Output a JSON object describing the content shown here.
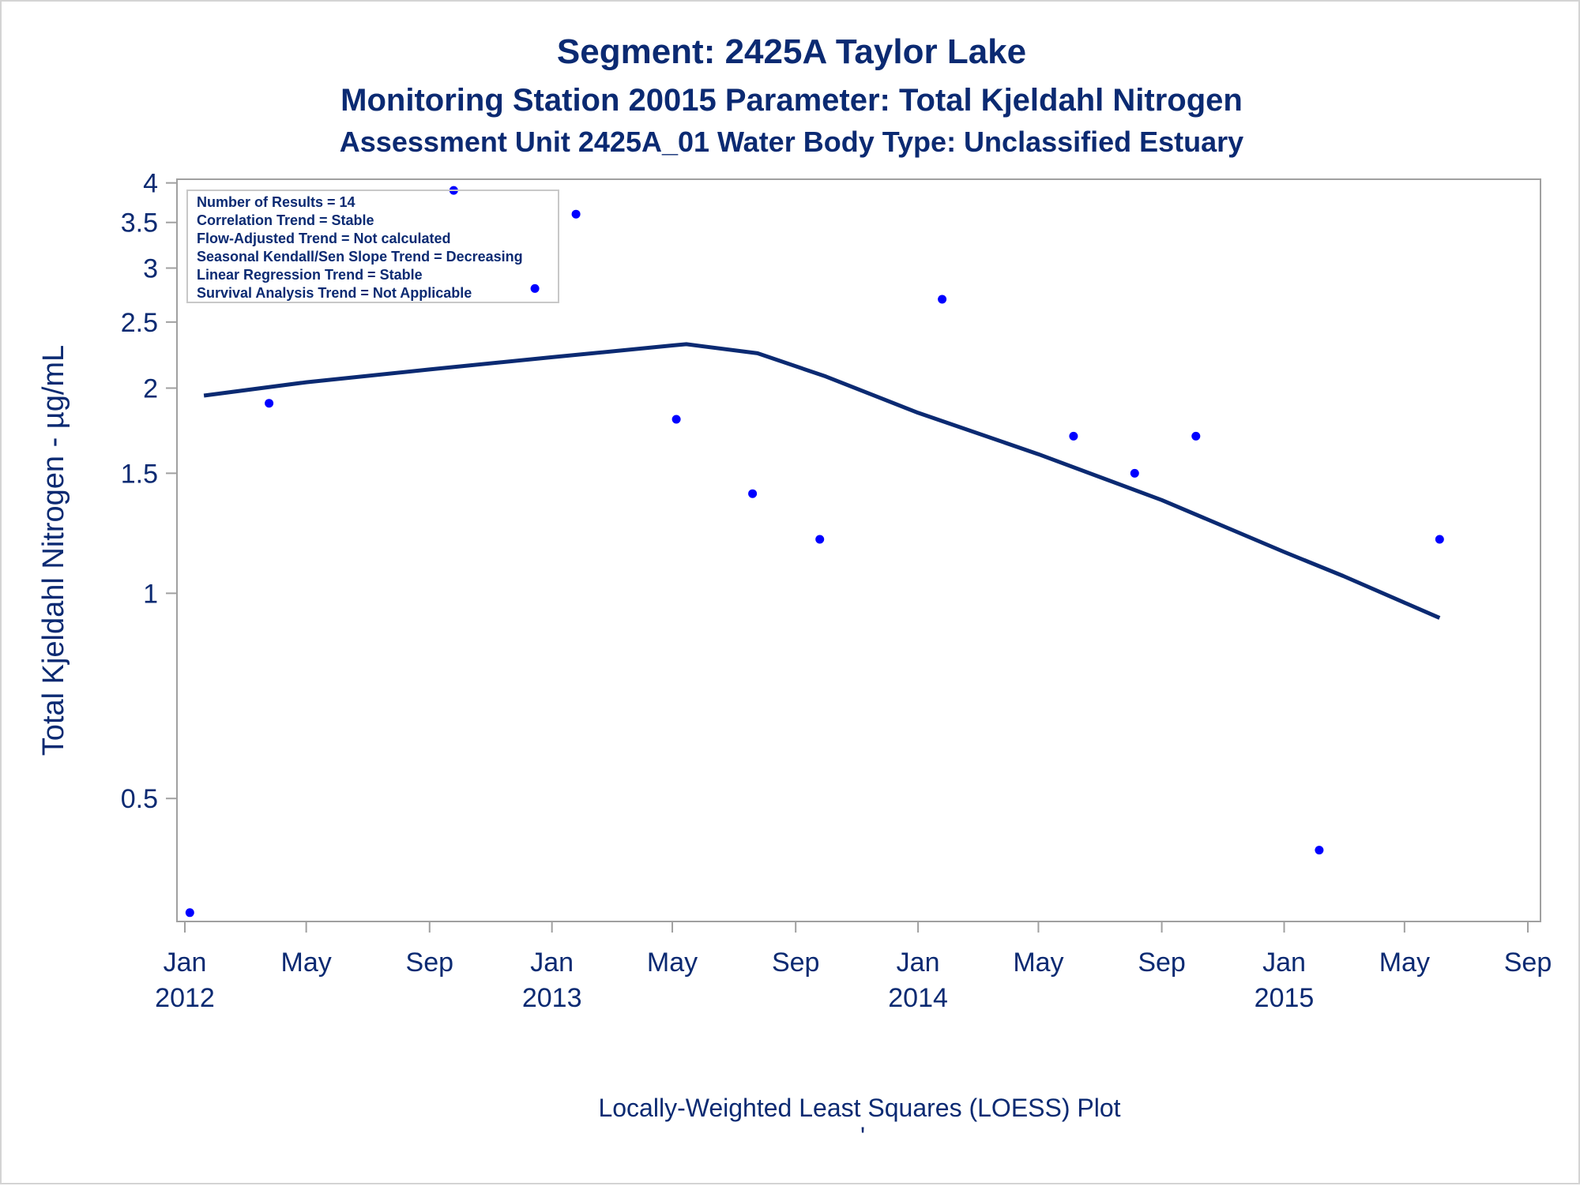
{
  "titles": {
    "line1": "Segment: 2425A  Taylor Lake",
    "line2": "Monitoring Station 20015 Parameter: Total Kjeldahl Nitrogen",
    "line3": "Assessment Unit 2425A_01   Water Body Type: Unclassified Estuary"
  },
  "legend": [
    "Number of Results = 14",
    "Correlation Trend = Stable",
    "Flow-Adjusted Trend = Not calculated",
    "Seasonal Kendall/Sen Slope Trend = Decreasing",
    "Linear Regression Trend = Stable",
    "Survival Analysis Trend = Not Applicable"
  ],
  "footnote": "Locally-Weighted Least Squares (LOESS) Plot",
  "footnote_mark": "'",
  "colors": {
    "points": "#0000ff",
    "line": "#0b2a72",
    "text": "#0b2a72",
    "frame": "#a0a0a0"
  },
  "chart_data": {
    "type": "scatter",
    "ylabel": "Total Kjeldahl Nitrogen -  µg/mL",
    "xlabel": "",
    "y_scale": "log",
    "ylim": [
      0.33,
      4.05
    ],
    "xlim": [
      "2012-01-01",
      "2015-09-01"
    ],
    "y_ticks": [
      {
        "value": 4,
        "label": "4"
      },
      {
        "value": 3.5,
        "label": "3.5"
      },
      {
        "value": 3,
        "label": "3"
      },
      {
        "value": 2.5,
        "label": "2.5"
      },
      {
        "value": 2,
        "label": "2"
      },
      {
        "value": 1.5,
        "label": "1.5"
      },
      {
        "value": 1,
        "label": "1"
      },
      {
        "value": 0.5,
        "label": "0.5"
      }
    ],
    "x_ticks": [
      {
        "date": "2012-01-01",
        "label": "Jan",
        "year": "2012"
      },
      {
        "date": "2012-05-01",
        "label": "May",
        "year": ""
      },
      {
        "date": "2012-09-01",
        "label": "Sep",
        "year": ""
      },
      {
        "date": "2013-01-01",
        "label": "Jan",
        "year": "2013"
      },
      {
        "date": "2013-05-01",
        "label": "May",
        "year": ""
      },
      {
        "date": "2013-09-01",
        "label": "Sep",
        "year": ""
      },
      {
        "date": "2014-01-01",
        "label": "Jan",
        "year": "2014"
      },
      {
        "date": "2014-05-01",
        "label": "May",
        "year": ""
      },
      {
        "date": "2014-09-01",
        "label": "Sep",
        "year": ""
      },
      {
        "date": "2015-01-01",
        "label": "Jan",
        "year": "2015"
      },
      {
        "date": "2015-05-01",
        "label": "May",
        "year": ""
      },
      {
        "date": "2015-09-01",
        "label": "Sep",
        "year": ""
      }
    ],
    "series": [
      {
        "type": "scatter",
        "points": [
          {
            "x": "2012-01-06",
            "y": 0.34
          },
          {
            "x": "2012-03-25",
            "y": 1.9
          },
          {
            "x": "2012-09-25",
            "y": 3.9
          },
          {
            "x": "2012-12-15",
            "y": 2.8
          },
          {
            "x": "2013-01-25",
            "y": 3.6
          },
          {
            "x": "2013-05-05",
            "y": 1.8
          },
          {
            "x": "2013-07-20",
            "y": 1.4
          },
          {
            "x": "2013-09-25",
            "y": 1.2
          },
          {
            "x": "2014-01-25",
            "y": 2.7
          },
          {
            "x": "2014-06-05",
            "y": 1.7
          },
          {
            "x": "2014-08-05",
            "y": 1.5
          },
          {
            "x": "2014-10-05",
            "y": 1.7
          },
          {
            "x": "2015-02-05",
            "y": 0.42
          },
          {
            "x": "2015-06-05",
            "y": 1.2
          }
        ]
      },
      {
        "type": "line",
        "points": [
          {
            "x": "2012-01-20",
            "y": 1.95
          },
          {
            "x": "2012-05-01",
            "y": 2.04
          },
          {
            "x": "2012-09-01",
            "y": 2.13
          },
          {
            "x": "2013-01-01",
            "y": 2.22
          },
          {
            "x": "2013-05-01",
            "y": 2.31
          },
          {
            "x": "2013-05-15",
            "y": 2.32
          },
          {
            "x": "2013-07-25",
            "y": 2.25
          },
          {
            "x": "2013-10-01",
            "y": 2.08
          },
          {
            "x": "2014-01-01",
            "y": 1.84
          },
          {
            "x": "2014-05-01",
            "y": 1.6
          },
          {
            "x": "2014-09-01",
            "y": 1.37
          },
          {
            "x": "2015-01-01",
            "y": 1.15
          },
          {
            "x": "2015-03-01",
            "y": 1.06
          },
          {
            "x": "2015-06-05",
            "y": 0.92
          }
        ]
      }
    ]
  }
}
